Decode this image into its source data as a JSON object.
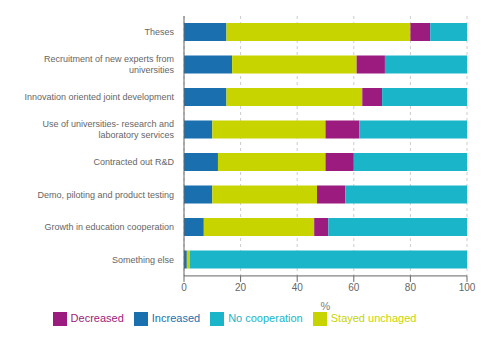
{
  "chart_data": {
    "type": "bar",
    "orientation": "horizontal",
    "stacked": true,
    "categories": [
      "Theses",
      "Recruitment of new experts from\nuniversities",
      "Innovation oriented joint development",
      "Use of universities- research and\nlaboratory services",
      "Contracted out R&D",
      "Demo, piloting and product testing",
      "Growth in education cooperation",
      "Something else"
    ],
    "series": [
      {
        "name": "Increased",
        "color": "#1a6faf",
        "values": [
          15,
          17,
          15,
          10,
          12,
          10,
          7,
          1
        ]
      },
      {
        "name": "Stayed unchaged",
        "color": "#c8d400",
        "values": [
          65,
          44,
          48,
          40,
          38,
          37,
          39,
          1
        ]
      },
      {
        "name": "Decreased",
        "color": "#9b1b7e",
        "values": [
          7,
          10,
          7,
          12,
          10,
          10,
          5,
          0
        ]
      },
      {
        "name": "No cooperation",
        "color": "#1ab5c8",
        "values": [
          13,
          29,
          30,
          38,
          40,
          43,
          49,
          98
        ]
      }
    ],
    "xlabel": "%",
    "xlim": [
      0,
      100
    ],
    "xticks": [
      0,
      20,
      40,
      60,
      80,
      100
    ],
    "grid": true,
    "legend": "bottom"
  }
}
